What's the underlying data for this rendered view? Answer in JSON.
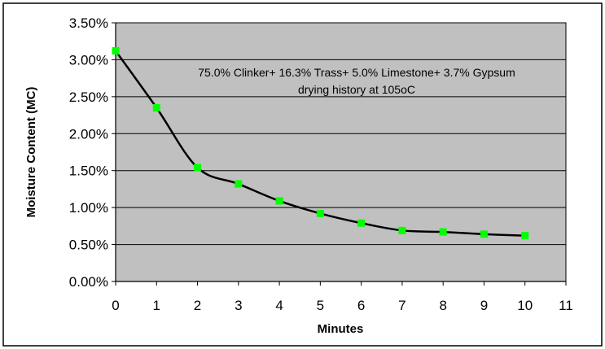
{
  "chart_data": {
    "type": "line",
    "title": "",
    "annotations": [
      "75.0% Clinker+ 16.3% Trass+ 5.0% Limestone+ 3.7% Gypsum",
      "drying history at 105oC"
    ],
    "xlabel": "Minutes",
    "ylabel": "Moisture Content (MC)",
    "xlim": [
      0,
      11
    ],
    "ylim": [
      0,
      0.035
    ],
    "x_ticks": [
      "0",
      "1",
      "2",
      "3",
      "4",
      "5",
      "6",
      "7",
      "8",
      "9",
      "10",
      "11"
    ],
    "y_ticks": [
      "0.00%",
      "0.50%",
      "1.00%",
      "1.50%",
      "2.00%",
      "2.50%",
      "3.00%",
      "3.50%"
    ],
    "grid": true,
    "legend": "none",
    "colors": {
      "plot_background": "#c0c0c0",
      "line": "#000000",
      "marker": "#00ff00"
    },
    "series": [
      {
        "x": [
          0,
          1,
          2,
          3,
          4,
          5,
          6,
          7,
          8,
          9,
          10
        ],
        "values": [
          0.0312,
          0.0235,
          0.0154,
          0.0132,
          0.0109,
          0.0092,
          0.0079,
          0.0069,
          0.0067,
          0.0064,
          0.0062
        ]
      }
    ]
  }
}
